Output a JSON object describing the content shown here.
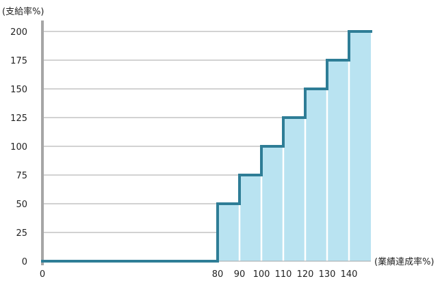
{
  "chart_data": {
    "type": "area",
    "step": true,
    "ylabel": "(支給率%)",
    "xlabel": "(業績達成率%)",
    "x_ticks": [
      0,
      80,
      90,
      100,
      110,
      120,
      130,
      140
    ],
    "y_ticks": [
      0,
      25,
      50,
      75,
      100,
      125,
      150,
      175,
      200
    ],
    "xlim": [
      0,
      150
    ],
    "ylim": [
      0,
      200
    ],
    "grid": "horizontal",
    "steps": [
      {
        "x_start": 0,
        "x_end": 80,
        "y": 0
      },
      {
        "x_start": 80,
        "x_end": 90,
        "y": 50
      },
      {
        "x_start": 90,
        "x_end": 100,
        "y": 75
      },
      {
        "x_start": 100,
        "x_end": 110,
        "y": 100
      },
      {
        "x_start": 110,
        "x_end": 120,
        "y": 125
      },
      {
        "x_start": 120,
        "x_end": 130,
        "y": 150
      },
      {
        "x_start": 130,
        "x_end": 140,
        "y": 175
      },
      {
        "x_start": 140,
        "x_end": 150,
        "y": 200
      }
    ],
    "colors": {
      "line": "#2e7d96",
      "fill": "#b9e3f1",
      "grid": "#a6a6a6",
      "axis": "#a6a6a6",
      "divider": "#ffffff"
    }
  }
}
